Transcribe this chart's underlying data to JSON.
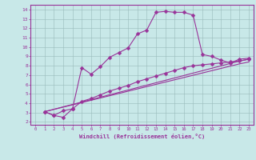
{
  "xlabel": "Windchill (Refroidissement éolien,°C)",
  "bg_color": "#c8e8e8",
  "line_color": "#993399",
  "grid_color": "#99bbbb",
  "xlim": [
    -0.5,
    23.5
  ],
  "ylim": [
    1.7,
    14.5
  ],
  "xticks": [
    0,
    1,
    2,
    3,
    4,
    5,
    6,
    7,
    8,
    9,
    10,
    11,
    12,
    13,
    14,
    15,
    16,
    17,
    18,
    19,
    20,
    21,
    22,
    23
  ],
  "yticks": [
    2,
    3,
    4,
    5,
    6,
    7,
    8,
    9,
    10,
    11,
    12,
    13,
    14
  ],
  "line1_x": [
    1,
    2,
    3,
    4,
    5,
    6,
    7,
    8,
    9,
    10,
    11,
    12,
    13,
    14,
    15,
    16,
    17,
    18,
    19,
    20,
    21,
    22,
    23
  ],
  "line1_y": [
    3.1,
    2.7,
    3.2,
    3.4,
    7.8,
    7.1,
    7.9,
    8.9,
    9.4,
    9.9,
    11.4,
    11.8,
    13.7,
    13.8,
    13.7,
    13.7,
    13.4,
    9.2,
    9.0,
    8.6,
    8.3,
    8.7,
    8.8
  ],
  "line2_x": [
    1,
    2,
    3,
    4,
    5,
    6,
    7,
    8,
    9,
    10,
    11,
    12,
    13,
    14,
    15,
    16,
    17,
    18,
    19,
    20,
    21,
    22,
    23
  ],
  "line2_y": [
    3.1,
    2.7,
    2.5,
    3.4,
    4.2,
    4.5,
    4.9,
    5.3,
    5.6,
    5.9,
    6.3,
    6.6,
    6.9,
    7.2,
    7.5,
    7.8,
    8.0,
    8.1,
    8.2,
    8.3,
    8.4,
    8.5,
    8.7
  ],
  "line3_x": [
    1,
    22,
    23
  ],
  "line3_y": [
    3.1,
    8.5,
    8.7
  ],
  "line4_x": [
    1,
    22,
    23
  ],
  "line4_y": [
    3.1,
    8.2,
    8.4
  ]
}
